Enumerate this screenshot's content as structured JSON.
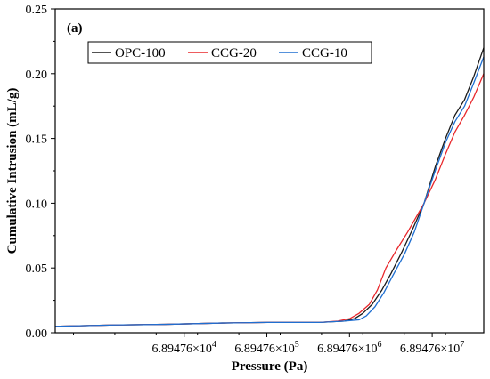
{
  "chart_data": {
    "type": "line",
    "panel_label": "(a)",
    "xlabel": "Pressure (Pa)",
    "ylabel": "Cumulative Intrusion (mL/g)",
    "xscale": "log",
    "xlim": [
      1900,
      290000000
    ],
    "ylim": [
      0,
      0.25
    ],
    "yticks": [
      "0.00",
      "0.05",
      "0.10",
      "0.15",
      "0.20",
      "0.25"
    ],
    "xticks": [
      {
        "value": 68947.6,
        "mantissa": "6.89476×10",
        "exponent": "4"
      },
      {
        "value": 689476,
        "mantissa": "6.89476×10",
        "exponent": "5"
      },
      {
        "value": 6894760,
        "mantissa": "6.89476×10",
        "exponent": "6"
      },
      {
        "value": 68947600,
        "mantissa": "6.89476×10",
        "exponent": "7"
      }
    ],
    "legend_position": "top-left",
    "series": [
      {
        "name": "OPC-100",
        "color": "#1a1a1a",
        "points": [
          [
            1900,
            0.005
          ],
          [
            10000,
            0.006
          ],
          [
            40000,
            0.0065
          ],
          [
            200000,
            0.0075
          ],
          [
            700000,
            0.008
          ],
          [
            3000000,
            0.008
          ],
          [
            6000000,
            0.009
          ],
          [
            8000000,
            0.011
          ],
          [
            10000000,
            0.015
          ],
          [
            13000000,
            0.022
          ],
          [
            17000000,
            0.033
          ],
          [
            22000000,
            0.046
          ],
          [
            30000000,
            0.063
          ],
          [
            40000000,
            0.08
          ],
          [
            55000000,
            0.1
          ],
          [
            75000000,
            0.128
          ],
          [
            100000000,
            0.15
          ],
          [
            130000000,
            0.168
          ],
          [
            170000000,
            0.18
          ],
          [
            220000000,
            0.198
          ],
          [
            290000000,
            0.22
          ]
        ]
      },
      {
        "name": "CCG-20",
        "color": "#e8262a",
        "points": [
          [
            1900,
            0.005
          ],
          [
            10000,
            0.006
          ],
          [
            40000,
            0.0065
          ],
          [
            200000,
            0.0075
          ],
          [
            700000,
            0.008
          ],
          [
            3000000,
            0.008
          ],
          [
            5000000,
            0.009
          ],
          [
            7000000,
            0.011
          ],
          [
            9000000,
            0.015
          ],
          [
            12000000,
            0.022
          ],
          [
            15000000,
            0.033
          ],
          [
            19000000,
            0.05
          ],
          [
            25000000,
            0.063
          ],
          [
            35000000,
            0.078
          ],
          [
            55000000,
            0.1
          ],
          [
            75000000,
            0.118
          ],
          [
            100000000,
            0.138
          ],
          [
            130000000,
            0.155
          ],
          [
            170000000,
            0.168
          ],
          [
            220000000,
            0.182
          ],
          [
            290000000,
            0.2
          ]
        ]
      },
      {
        "name": "CCG-10",
        "color": "#1f6fd1",
        "points": [
          [
            1900,
            0.005
          ],
          [
            10000,
            0.006
          ],
          [
            40000,
            0.0065
          ],
          [
            200000,
            0.0075
          ],
          [
            700000,
            0.008
          ],
          [
            3000000,
            0.008
          ],
          [
            6000000,
            0.009
          ],
          [
            9000000,
            0.01
          ],
          [
            11000000,
            0.013
          ],
          [
            14000000,
            0.02
          ],
          [
            18000000,
            0.031
          ],
          [
            23000000,
            0.044
          ],
          [
            32000000,
            0.061
          ],
          [
            42000000,
            0.078
          ],
          [
            55000000,
            0.1
          ],
          [
            75000000,
            0.125
          ],
          [
            100000000,
            0.147
          ],
          [
            130000000,
            0.163
          ],
          [
            170000000,
            0.175
          ],
          [
            220000000,
            0.193
          ],
          [
            290000000,
            0.213
          ]
        ]
      }
    ]
  }
}
